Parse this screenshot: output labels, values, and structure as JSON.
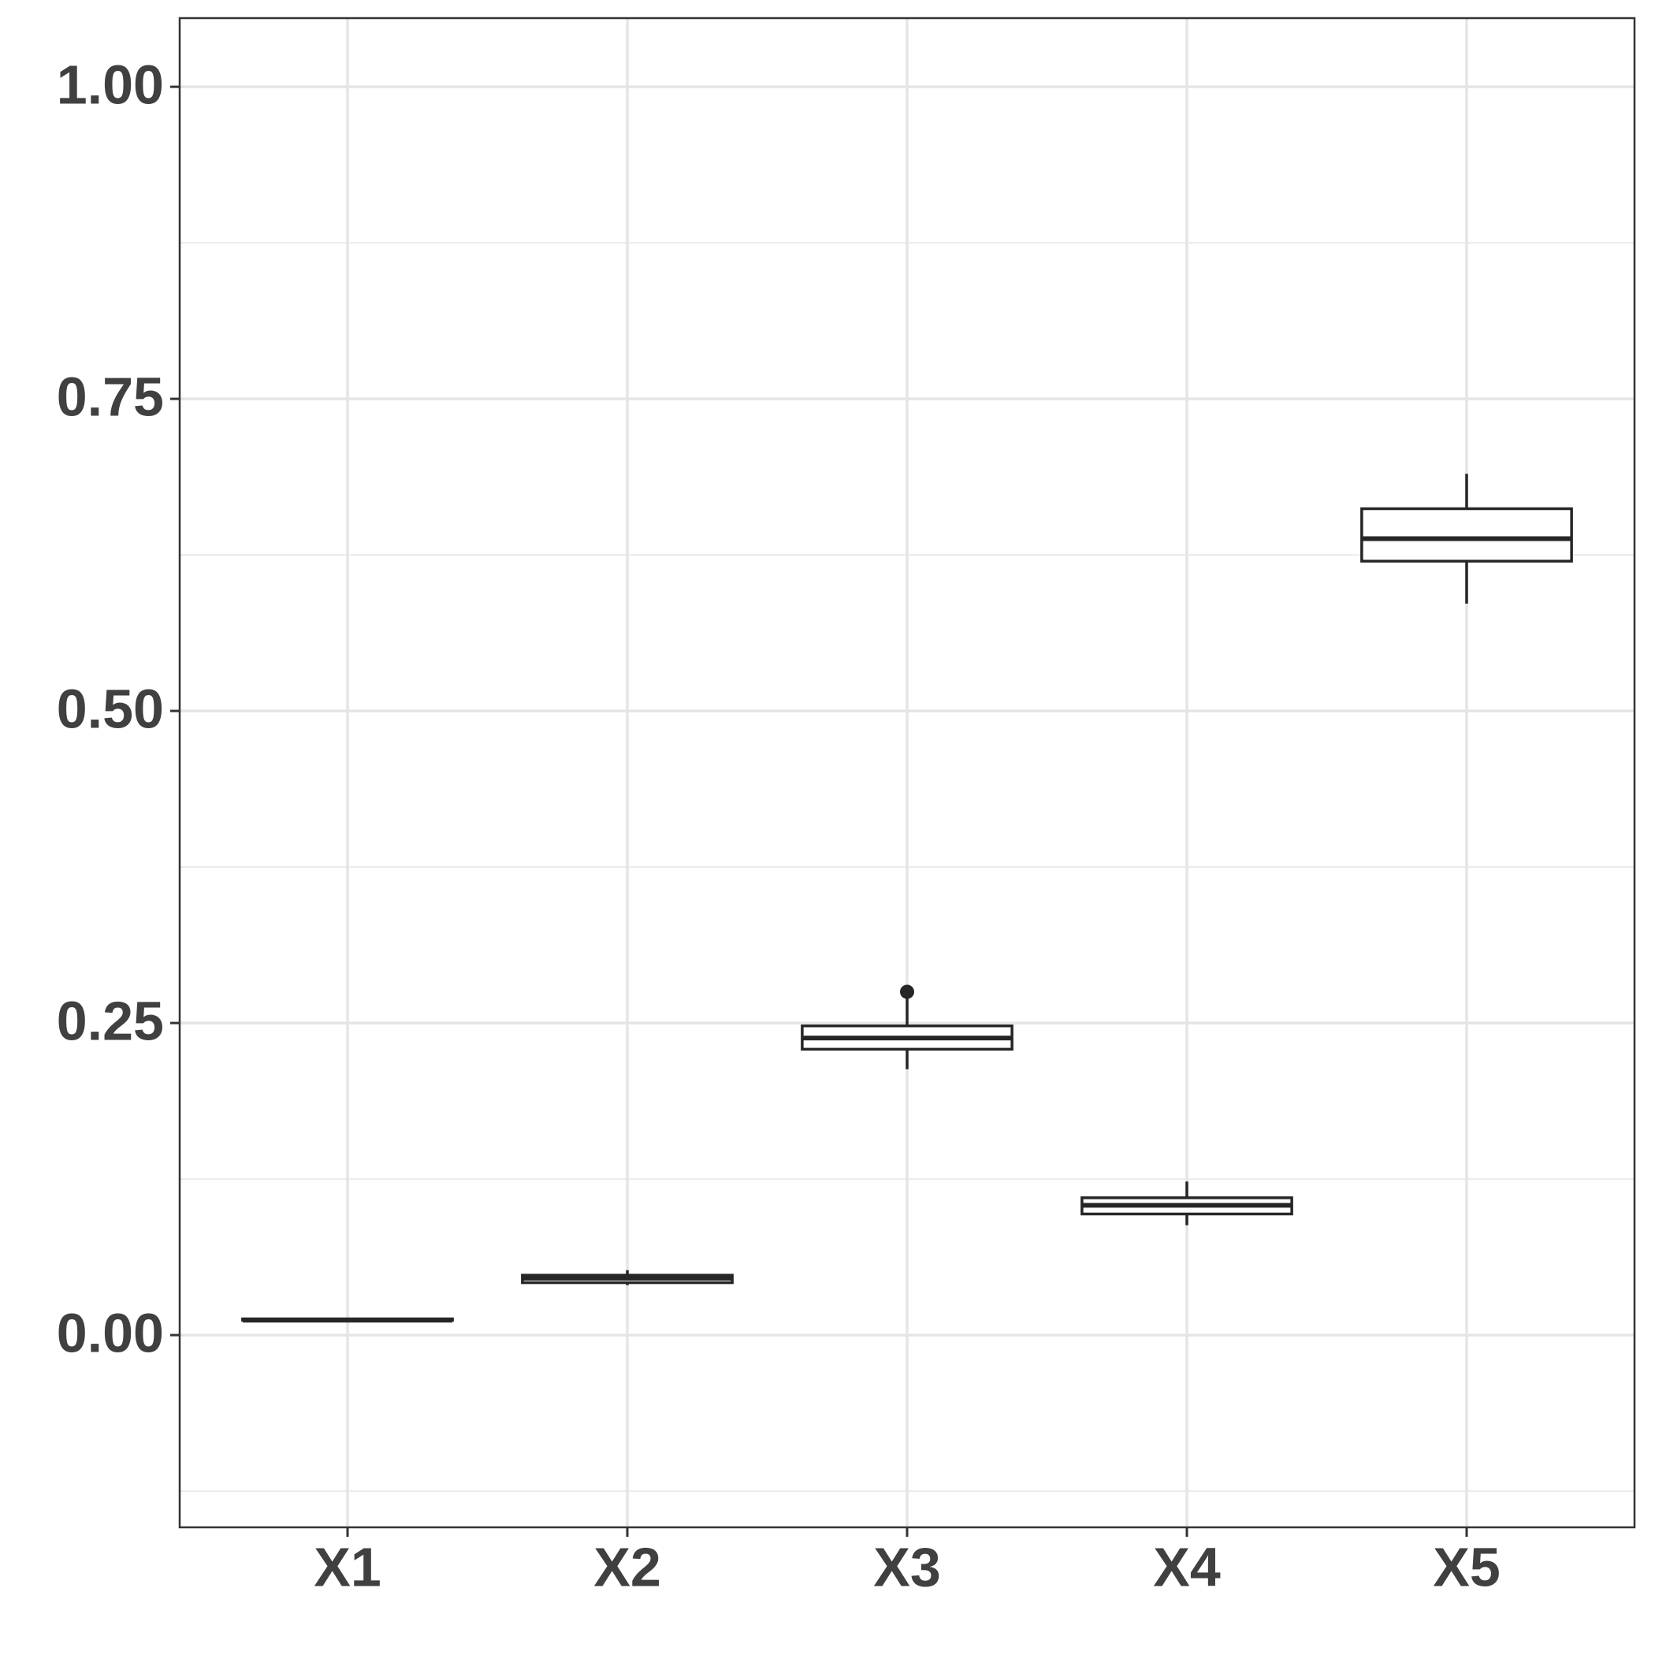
{
  "chart_data": {
    "type": "box",
    "categories": [
      "X1",
      "X2",
      "X3",
      "X4",
      "X5"
    ],
    "boxes": [
      {
        "min": 0.011,
        "q1": 0.012,
        "median": 0.012,
        "q3": 0.013,
        "max": 0.013,
        "outliers": []
      },
      {
        "min": 0.04,
        "q1": 0.042,
        "median": 0.0456,
        "q3": 0.048,
        "max": 0.052,
        "outliers": []
      },
      {
        "min": 0.213,
        "q1": 0.229,
        "median": 0.238,
        "q3": 0.2477,
        "max": 0.271,
        "outliers": [
          0.275
        ]
      },
      {
        "min": 0.088,
        "q1": 0.097,
        "median": 0.104,
        "q3": 0.11,
        "max": 0.123,
        "outliers": []
      },
      {
        "min": 0.586,
        "q1": 0.62,
        "median": 0.638,
        "q3": 0.662,
        "max": 0.69,
        "outliers": []
      }
    ],
    "color": "#262626",
    "ylim": [
      -0.154,
      1.055
    ],
    "yticks": [
      {
        "value": 0,
        "label": "0.00"
      },
      0.25,
      {
        "value": 0.5,
        "label": "0.50"
      },
      0.75,
      {
        "value": 1,
        "label": "1.00"
      }
    ],
    "y_minor_ticks": [
      -0.125,
      0.125,
      0.375,
      0.625,
      0.875
    ],
    "grid": true
  }
}
